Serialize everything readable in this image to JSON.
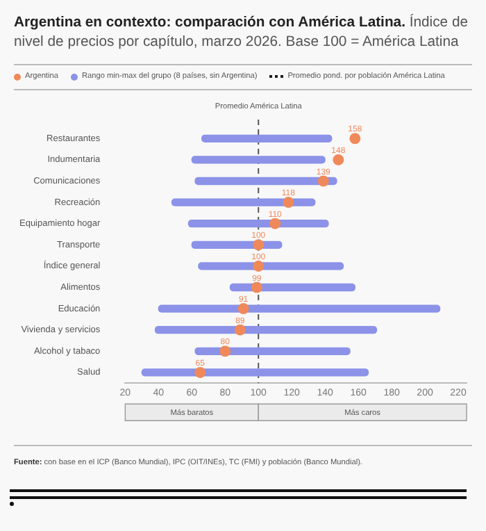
{
  "chart_data": {
    "type": "bar",
    "orientation": "horizontal",
    "title": "Argentina en contexto: comparación con América Latina.",
    "subtitle": "Índice de nivel de precios por capítulo, marzo 2026. Base 100 = América Latina",
    "categories": [
      "Restaurantes",
      "Indumentaria",
      "Comunicaciones",
      "Recreación",
      "Equipamiento hogar",
      "Transporte",
      "Índice general",
      "Alimentos",
      "Educación",
      "Vivienda y servicios",
      "Alcohol y tabaco",
      "Salud"
    ],
    "series": [
      {
        "name": "Rango min-max del grupo (8 países, sin Argentina)",
        "color": "#8b92e8",
        "base": [
          66,
          60,
          62,
          48,
          58,
          60,
          64,
          83,
          40,
          38,
          62,
          30
        ],
        "values": [
          78,
          80,
          85,
          86,
          84,
          54,
          87,
          75,
          169,
          133,
          93,
          136
        ]
      },
      {
        "name": "Argentina",
        "type": "scatter",
        "color": "#f0895a",
        "marker": "circle",
        "values": [
          158,
          148,
          139,
          118,
          110,
          100,
          100,
          99,
          91,
          89,
          80,
          65
        ],
        "value_labels": [
          "158",
          "148",
          "139",
          "118",
          "110",
          "100",
          "100",
          "99",
          "91",
          "89",
          "80",
          "65"
        ]
      }
    ],
    "xlim": [
      20,
      225
    ],
    "xticks": [
      20,
      40,
      60,
      80,
      100,
      120,
      140,
      160,
      180,
      200,
      220
    ],
    "ref_lines": [
      {
        "axis": "x",
        "value": 100,
        "label": "Promedio América Latina",
        "color": "#555555",
        "line_style": "dashed"
      }
    ],
    "annotations": [
      "Promedio pond. por población América Latina",
      "Fuente: con base en el ICP (Banco Mundial), IPC (OIT/INEs), TC (FMI) y población (Banco Mundial).",
      "Más baratos",
      "Más caros"
    ],
    "legend": "top",
    "grid": false
  }
}
